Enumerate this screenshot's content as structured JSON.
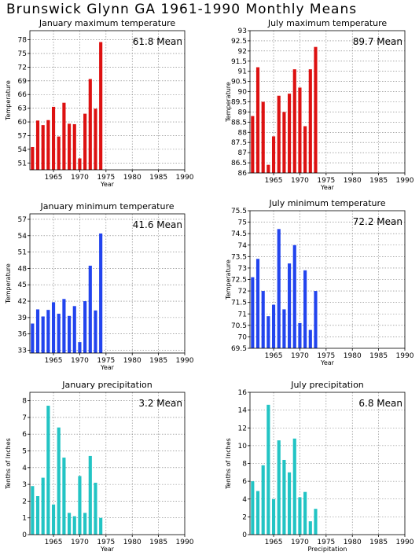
{
  "page": {
    "title": "Brunswick Glynn GA   1961-1990 Monthly Means"
  },
  "chart_data": [
    {
      "id": "jan-max",
      "type": "bar",
      "title": "January maximum temperature",
      "xlabel": "Year",
      "ylabel": "Temperature",
      "mean_text": "61.8 Mean",
      "color": "#dd1111",
      "xlim": [
        1960.5,
        1990
      ],
      "ylim": [
        49.5,
        80
      ],
      "yticks": [
        51,
        54,
        57,
        60,
        63,
        66,
        69,
        72,
        75,
        78
      ],
      "xticks": [
        1965,
        1970,
        1975,
        1980,
        1985,
        1990
      ],
      "grid": true,
      "x": [
        1961,
        1962,
        1963,
        1964,
        1965,
        1966,
        1967,
        1968,
        1969,
        1970,
        1971,
        1972,
        1973,
        1974
      ],
      "values": [
        54.5,
        60.3,
        59.3,
        60.4,
        63.3,
        56.8,
        64.2,
        59.6,
        59.5,
        52.0,
        61.8,
        69.4,
        62.9,
        77.5
      ]
    },
    {
      "id": "jul-max",
      "type": "bar",
      "title": "July maximum temperature",
      "xlabel": "Year",
      "ylabel": "Temperature",
      "mean_text": "89.7 Mean",
      "color": "#dd1111",
      "xlim": [
        1960.5,
        1990
      ],
      "ylim": [
        86,
        93
      ],
      "yticks": [
        86,
        86.5,
        87,
        87.5,
        88,
        88.5,
        89,
        89.5,
        90,
        90.5,
        91,
        91.5,
        92,
        92.5,
        93
      ],
      "xticks": [
        1965,
        1970,
        1975,
        1980,
        1985,
        1990
      ],
      "grid": true,
      "x": [
        1961,
        1962,
        1963,
        1964,
        1965,
        1966,
        1967,
        1968,
        1969,
        1970,
        1971,
        1972,
        1973
      ],
      "values": [
        88.8,
        91.2,
        89.5,
        86.4,
        87.8,
        89.8,
        89.0,
        89.9,
        91.1,
        90.2,
        88.3,
        91.1,
        92.2
      ]
    },
    {
      "id": "jan-min",
      "type": "bar",
      "title": "January minimum temperature",
      "xlabel": "Year",
      "ylabel": "Temperature",
      "mean_text": "41.6 Mean",
      "color": "#2244ee",
      "xlim": [
        1960.5,
        1990
      ],
      "ylim": [
        32.5,
        58
      ],
      "yticks": [
        33,
        36,
        39,
        42,
        45,
        48,
        51,
        54,
        57
      ],
      "xticks": [
        1965,
        1970,
        1975,
        1980,
        1985,
        1990
      ],
      "grid": true,
      "x": [
        1961,
        1962,
        1963,
        1964,
        1965,
        1966,
        1967,
        1968,
        1969,
        1970,
        1971,
        1972,
        1973,
        1974
      ],
      "values": [
        37.9,
        40.5,
        39.2,
        40.4,
        41.8,
        39.7,
        42.4,
        39.3,
        41.1,
        34.5,
        42.0,
        48.5,
        40.3,
        54.4
      ]
    },
    {
      "id": "jul-min",
      "type": "bar",
      "title": "July minimum temperature",
      "xlabel": "Year",
      "ylabel": "Temperature",
      "mean_text": "72.2 Mean",
      "color": "#2244ee",
      "xlim": [
        1960.5,
        1990
      ],
      "ylim": [
        69.5,
        75.5
      ],
      "yticks": [
        69.5,
        70,
        70.5,
        71,
        71.5,
        72,
        72.5,
        73,
        73.5,
        74,
        74.5,
        75,
        75.5
      ],
      "xticks": [
        1965,
        1970,
        1975,
        1980,
        1985,
        1990
      ],
      "grid": true,
      "x": [
        1961,
        1962,
        1963,
        1964,
        1965,
        1966,
        1967,
        1968,
        1969,
        1970,
        1971,
        1972,
        1973
      ],
      "values": [
        72.6,
        73.4,
        72.0,
        70.9,
        71.4,
        74.7,
        71.2,
        73.2,
        74.0,
        70.6,
        72.9,
        70.3,
        72.0
      ]
    },
    {
      "id": "jan-precip",
      "type": "bar",
      "title": "January precipitation",
      "xlabel": "Year",
      "ylabel": "Tenths of Inches",
      "mean_text": "3.2 Mean",
      "color": "#22c4c4",
      "xlim": [
        1960.5,
        1990
      ],
      "ylim": [
        0,
        8.5
      ],
      "yticks": [
        0,
        1,
        2,
        3,
        4,
        5,
        6,
        7,
        8
      ],
      "xticks": [
        1965,
        1970,
        1975,
        1980,
        1985,
        1990
      ],
      "grid": true,
      "x": [
        1961,
        1962,
        1963,
        1964,
        1965,
        1966,
        1967,
        1968,
        1969,
        1970,
        1971,
        1972,
        1973,
        1974
      ],
      "values": [
        2.9,
        2.3,
        3.4,
        7.7,
        1.8,
        6.4,
        4.6,
        1.3,
        1.1,
        3.5,
        1.3,
        4.7,
        3.1,
        1.0
      ]
    },
    {
      "id": "jul-precip",
      "type": "bar",
      "title": "July precipitation",
      "xlabel": "Precipitation",
      "ylabel": "Tenths of Inches",
      "mean_text": "6.8 Mean",
      "color": "#22c4c4",
      "xlim": [
        1960.5,
        1990
      ],
      "ylim": [
        0,
        16
      ],
      "yticks": [
        0,
        2,
        4,
        6,
        8,
        10,
        12,
        14,
        16
      ],
      "xticks": [
        1965,
        1970,
        1975,
        1980,
        1985,
        1990
      ],
      "grid": true,
      "x": [
        1961,
        1962,
        1963,
        1964,
        1965,
        1966,
        1967,
        1968,
        1969,
        1970,
        1971,
        1972,
        1973
      ],
      "values": [
        6.0,
        4.9,
        7.8,
        14.6,
        4.0,
        10.6,
        8.4,
        7.0,
        10.8,
        4.2,
        4.8,
        1.5,
        2.9
      ]
    }
  ]
}
